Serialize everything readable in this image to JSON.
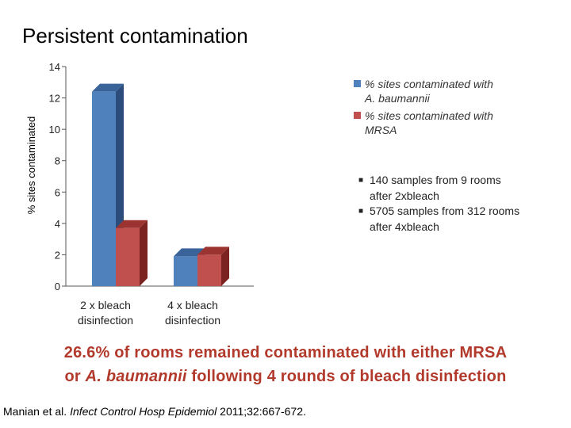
{
  "slide": {
    "title": "Persistent contamination",
    "conclusion_line1": "26.6% of rooms remained contaminated with either MRSA",
    "conclusion_line2_prefix": "or ",
    "conclusion_line2_italic": "A. baumannii",
    "conclusion_line2_suffix": " following 4 rounds of bleach disinfection",
    "citation_authors": "Manian et al. ",
    "citation_journal": "Infect Control Hosp Epidemiol",
    "citation_rest": " 2011;32:667-672."
  },
  "notes": [
    {
      "line1": "140 samples from 9 rooms",
      "line2": "after 2xbleach"
    },
    {
      "line1": "5705 samples from 312 rooms",
      "line2": "after 4xbleach"
    }
  ],
  "colors": {
    "series_blue": "#4f81bd",
    "series_blue_dark": "#2c4d7c",
    "series_blue_top": "#3a6499",
    "series_red": "#c0504d",
    "series_red_dark": "#7a2320",
    "series_red_top": "#9b3431",
    "conclusion": "#b23a2c"
  },
  "chart_data": {
    "type": "bar",
    "title": "",
    "ylabel": "% sites contaminated",
    "xlabel": "",
    "ylim": [
      0,
      14
    ],
    "yticks": [
      "0",
      "2",
      "4",
      "6",
      "8",
      "10",
      "12",
      "14"
    ],
    "categories": [
      [
        "2 x bleach",
        "disinfection"
      ],
      [
        "4 x bleach",
        "disinfection"
      ]
    ],
    "series": [
      {
        "name_line1": "% sites contaminated with",
        "name_line2": "A. baumannii",
        "values": [
          12.4,
          1.9
        ]
      },
      {
        "name_line1": "% sites contaminated with",
        "name_line2": "MRSA",
        "values": [
          3.7,
          2.0
        ]
      }
    ],
    "legend_position": "right",
    "grid": false
  }
}
